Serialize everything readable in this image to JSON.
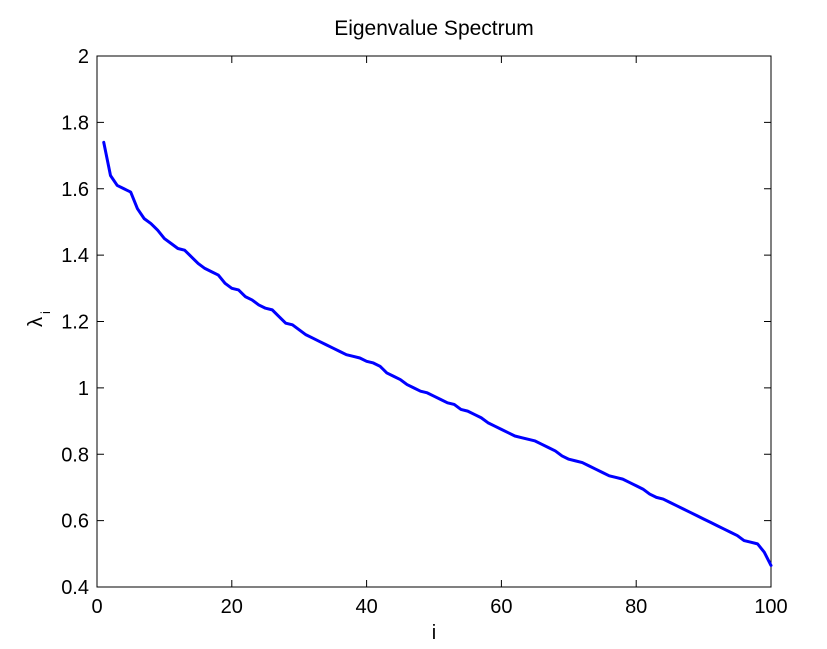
{
  "chart_data": {
    "type": "line",
    "title": "Eigenvalue Spectrum",
    "xlabel": "i",
    "ylabel": "λ",
    "ylabel_subscript": "i",
    "xlim": [
      0,
      100
    ],
    "ylim": [
      0.4,
      2
    ],
    "xticks": [
      "0",
      "20",
      "40",
      "60",
      "80",
      "100"
    ],
    "yticks": [
      "0.4",
      "0.6",
      "0.8",
      "1",
      "1.2",
      "1.4",
      "1.6",
      "1.8",
      "2"
    ],
    "xtick_values": [
      0,
      20,
      40,
      60,
      80,
      100
    ],
    "ytick_values": [
      0.4,
      0.6,
      0.8,
      1.0,
      1.2,
      1.4,
      1.6,
      1.8,
      2.0
    ],
    "grid": false,
    "line_color": "#0000ff",
    "series": [
      {
        "x": [
          1,
          2,
          3,
          4,
          5,
          6,
          7,
          8,
          9,
          10,
          11,
          12,
          13,
          14,
          15,
          16,
          17,
          18,
          19,
          20,
          21,
          22,
          23,
          24,
          25,
          26,
          27,
          28,
          29,
          30,
          31,
          32,
          33,
          34,
          35,
          36,
          37,
          38,
          39,
          40,
          41,
          42,
          43,
          44,
          45,
          46,
          47,
          48,
          49,
          50,
          51,
          52,
          53,
          54,
          55,
          56,
          57,
          58,
          59,
          60,
          61,
          62,
          63,
          64,
          65,
          66,
          67,
          68,
          69,
          70,
          71,
          72,
          73,
          74,
          75,
          76,
          77,
          78,
          79,
          80,
          81,
          82,
          83,
          84,
          85,
          86,
          87,
          88,
          89,
          90,
          91,
          92,
          93,
          94,
          95,
          96,
          97,
          98,
          99,
          100
        ],
        "y": [
          1.74,
          1.64,
          1.61,
          1.6,
          1.59,
          1.54,
          1.51,
          1.495,
          1.475,
          1.45,
          1.435,
          1.42,
          1.415,
          1.395,
          1.375,
          1.36,
          1.35,
          1.34,
          1.315,
          1.3,
          1.295,
          1.275,
          1.265,
          1.25,
          1.24,
          1.235,
          1.215,
          1.195,
          1.19,
          1.175,
          1.16,
          1.15,
          1.14,
          1.13,
          1.12,
          1.11,
          1.1,
          1.095,
          1.09,
          1.08,
          1.075,
          1.065,
          1.045,
          1.035,
          1.025,
          1.01,
          1.0,
          0.99,
          0.985,
          0.975,
          0.965,
          0.955,
          0.95,
          0.935,
          0.93,
          0.92,
          0.91,
          0.895,
          0.885,
          0.875,
          0.865,
          0.855,
          0.85,
          0.845,
          0.84,
          0.83,
          0.82,
          0.81,
          0.795,
          0.785,
          0.78,
          0.775,
          0.765,
          0.755,
          0.745,
          0.735,
          0.73,
          0.725,
          0.715,
          0.705,
          0.695,
          0.68,
          0.67,
          0.665,
          0.655,
          0.645,
          0.635,
          0.625,
          0.615,
          0.605,
          0.595,
          0.585,
          0.575,
          0.565,
          0.555,
          0.54,
          0.535,
          0.53,
          0.505,
          0.465
        ]
      }
    ]
  }
}
